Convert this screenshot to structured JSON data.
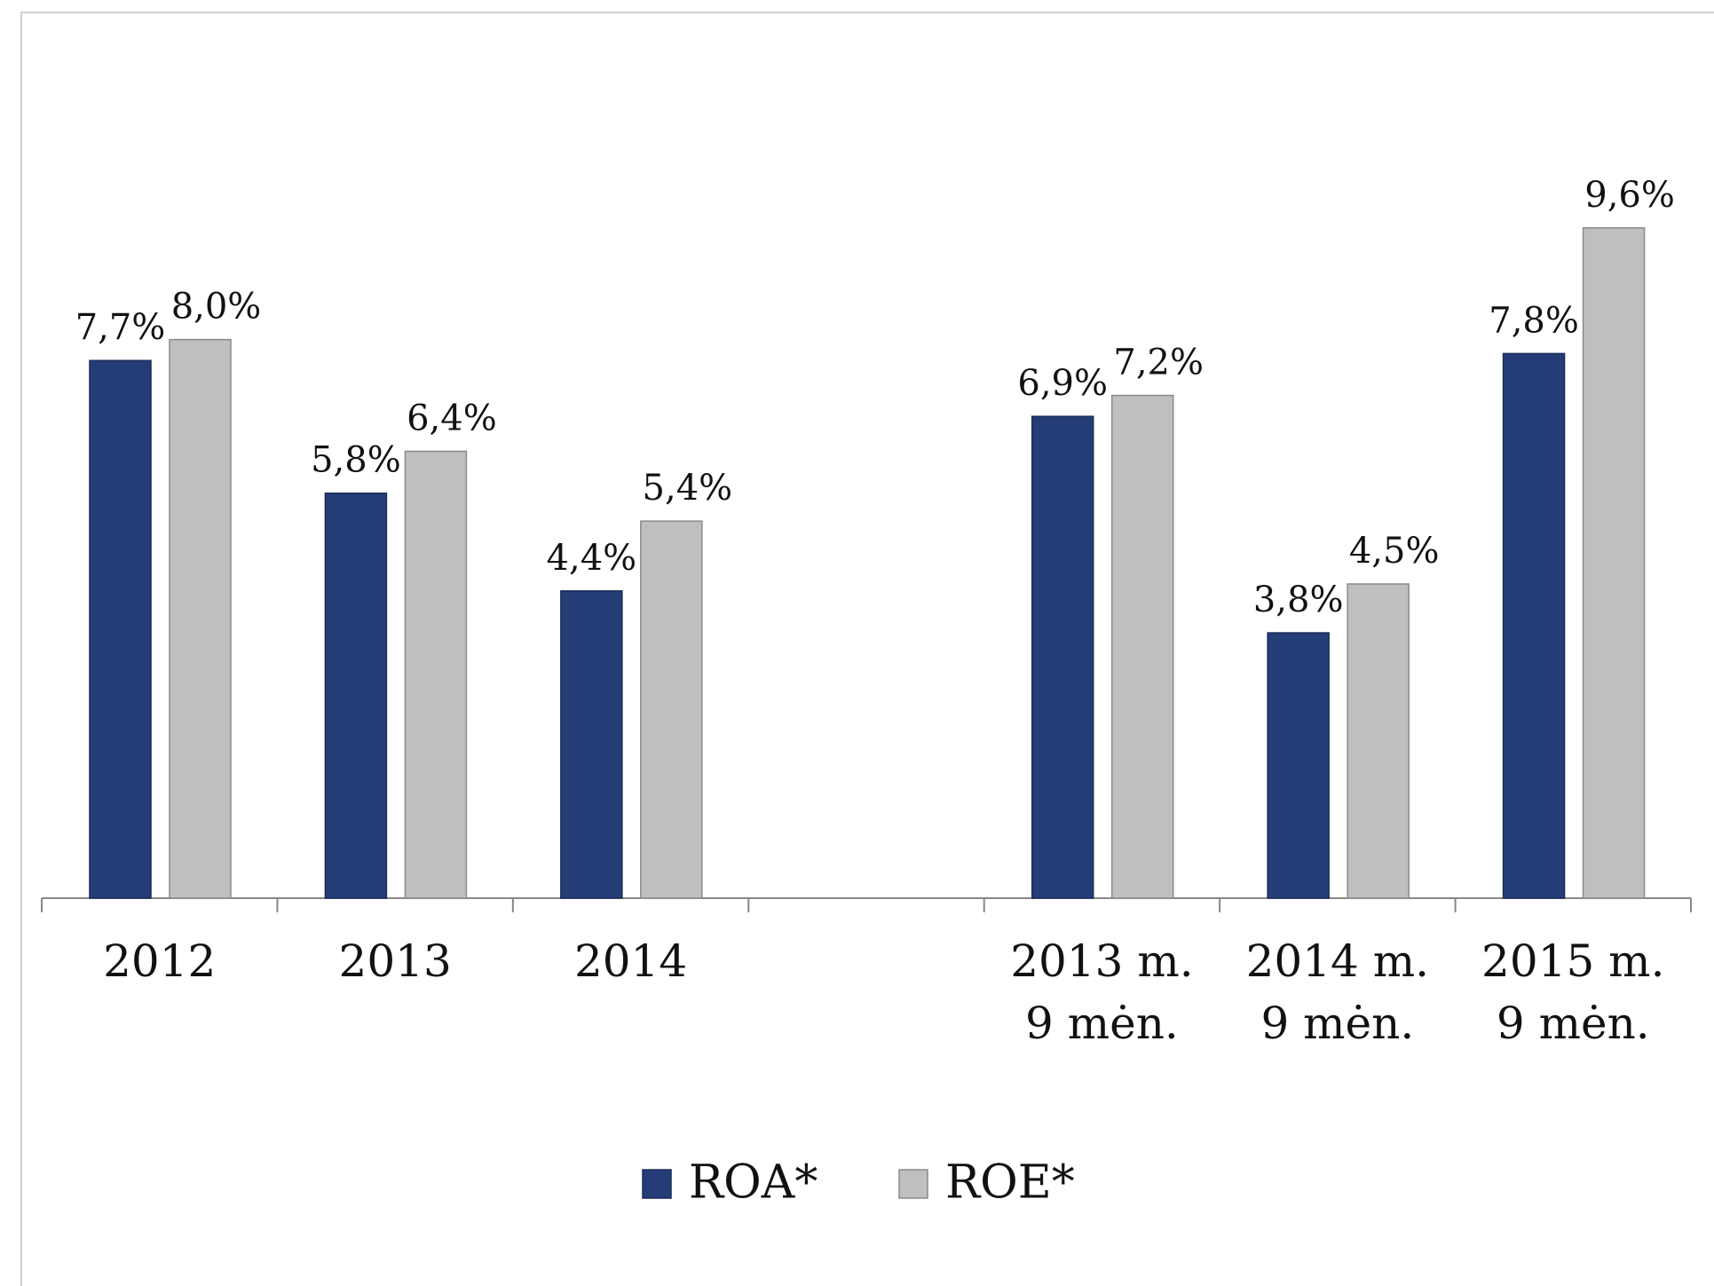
{
  "chart_data": {
    "type": "bar",
    "categories": [
      [
        "2012"
      ],
      [
        "2013"
      ],
      [
        "2014"
      ],
      null,
      [
        "2013 m.",
        "9 mėn."
      ],
      [
        "2014 m.",
        "9 mėn."
      ],
      [
        "2015 m.",
        "9 mėn."
      ]
    ],
    "series": [
      {
        "name": "ROA*",
        "color": "#253d77",
        "values": [
          7.7,
          5.8,
          4.4,
          null,
          6.9,
          3.8,
          7.8
        ],
        "value_labels": [
          "7,7%",
          "5,8%",
          "4,4%",
          null,
          "6,9%",
          "3,8%",
          "7,8%"
        ]
      },
      {
        "name": "ROE*",
        "color": "#bfbfbf",
        "values": [
          8.0,
          6.4,
          5.4,
          null,
          7.2,
          4.5,
          9.6
        ],
        "value_labels": [
          "8,0%",
          "6,4%",
          "5,4%",
          null,
          "7,2%",
          "4,5%",
          "9,6%"
        ]
      }
    ],
    "ylim": [
      0,
      12.8
    ],
    "legend": "bottom"
  }
}
